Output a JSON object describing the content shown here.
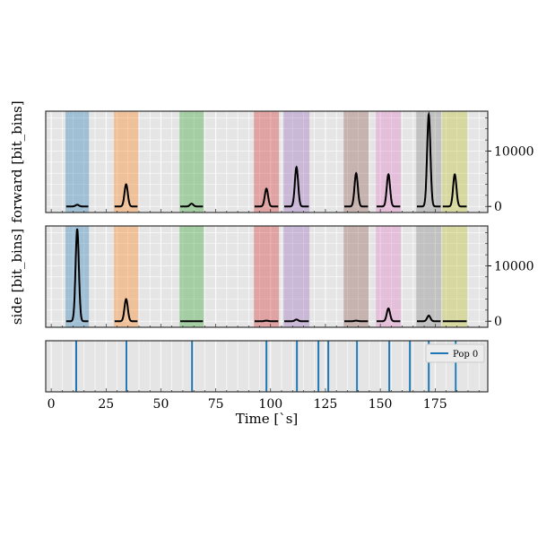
{
  "chart_data": [
    {
      "type": "line",
      "ylabel": "forward [bit_bins]",
      "ylim": [
        -1100,
        17200
      ],
      "yticks": [
        0,
        10000
      ],
      "ytick_labels": [
        "0",
        "10000"
      ],
      "peaks": [
        300,
        4000,
        500,
        3200,
        7100,
        6000,
        5800,
        16600,
        5800
      ]
    },
    {
      "type": "line",
      "ylabel": "side [bit_bins]",
      "ylim": [
        -1100,
        17200
      ],
      "yticks": [
        0,
        10000
      ],
      "ytick_labels": [
        "0",
        "10000"
      ],
      "peaks": [
        16600,
        4000,
        0,
        100,
        300,
        100,
        2300,
        1000,
        0
      ]
    },
    {
      "type": "event",
      "legend": "Pop 0",
      "legend_position": "top-right",
      "events": [
        11.4,
        34.3,
        64.2,
        98.1,
        112,
        121.8,
        126.3,
        139.4,
        154.1,
        163.5,
        172.1,
        184.4
      ]
    }
  ],
  "bands": [
    {
      "start": 6.5,
      "end": 17.2,
      "color": "#1f77b4"
    },
    {
      "start": 28.6,
      "end": 39.7,
      "color": "#ff7f0e"
    },
    {
      "start": 58.5,
      "end": 69.5,
      "color": "#2ca02c"
    },
    {
      "start": 92.4,
      "end": 103.8,
      "color": "#d62728"
    },
    {
      "start": 105.9,
      "end": 117.7,
      "color": "#9467bd"
    },
    {
      "start": 133.3,
      "end": 144.7,
      "color": "#8c564b"
    },
    {
      "start": 148,
      "end": 159.4,
      "color": "#e377c2"
    },
    {
      "start": 166.4,
      "end": 177.8,
      "color": "#7f7f7f"
    },
    {
      "start": 178.2,
      "end": 189.7,
      "color": "#bcbd22"
    }
  ],
  "xaxis": {
    "label": "Time [`s]",
    "xlim": [
      -2.5,
      199
    ],
    "ticks": [
      0,
      25,
      50,
      75,
      100,
      125,
      150,
      175
    ],
    "tick_labels": [
      "0",
      "25",
      "50",
      "75",
      "100",
      "125",
      "150",
      "175"
    ]
  },
  "event_color": "#1f77b4"
}
